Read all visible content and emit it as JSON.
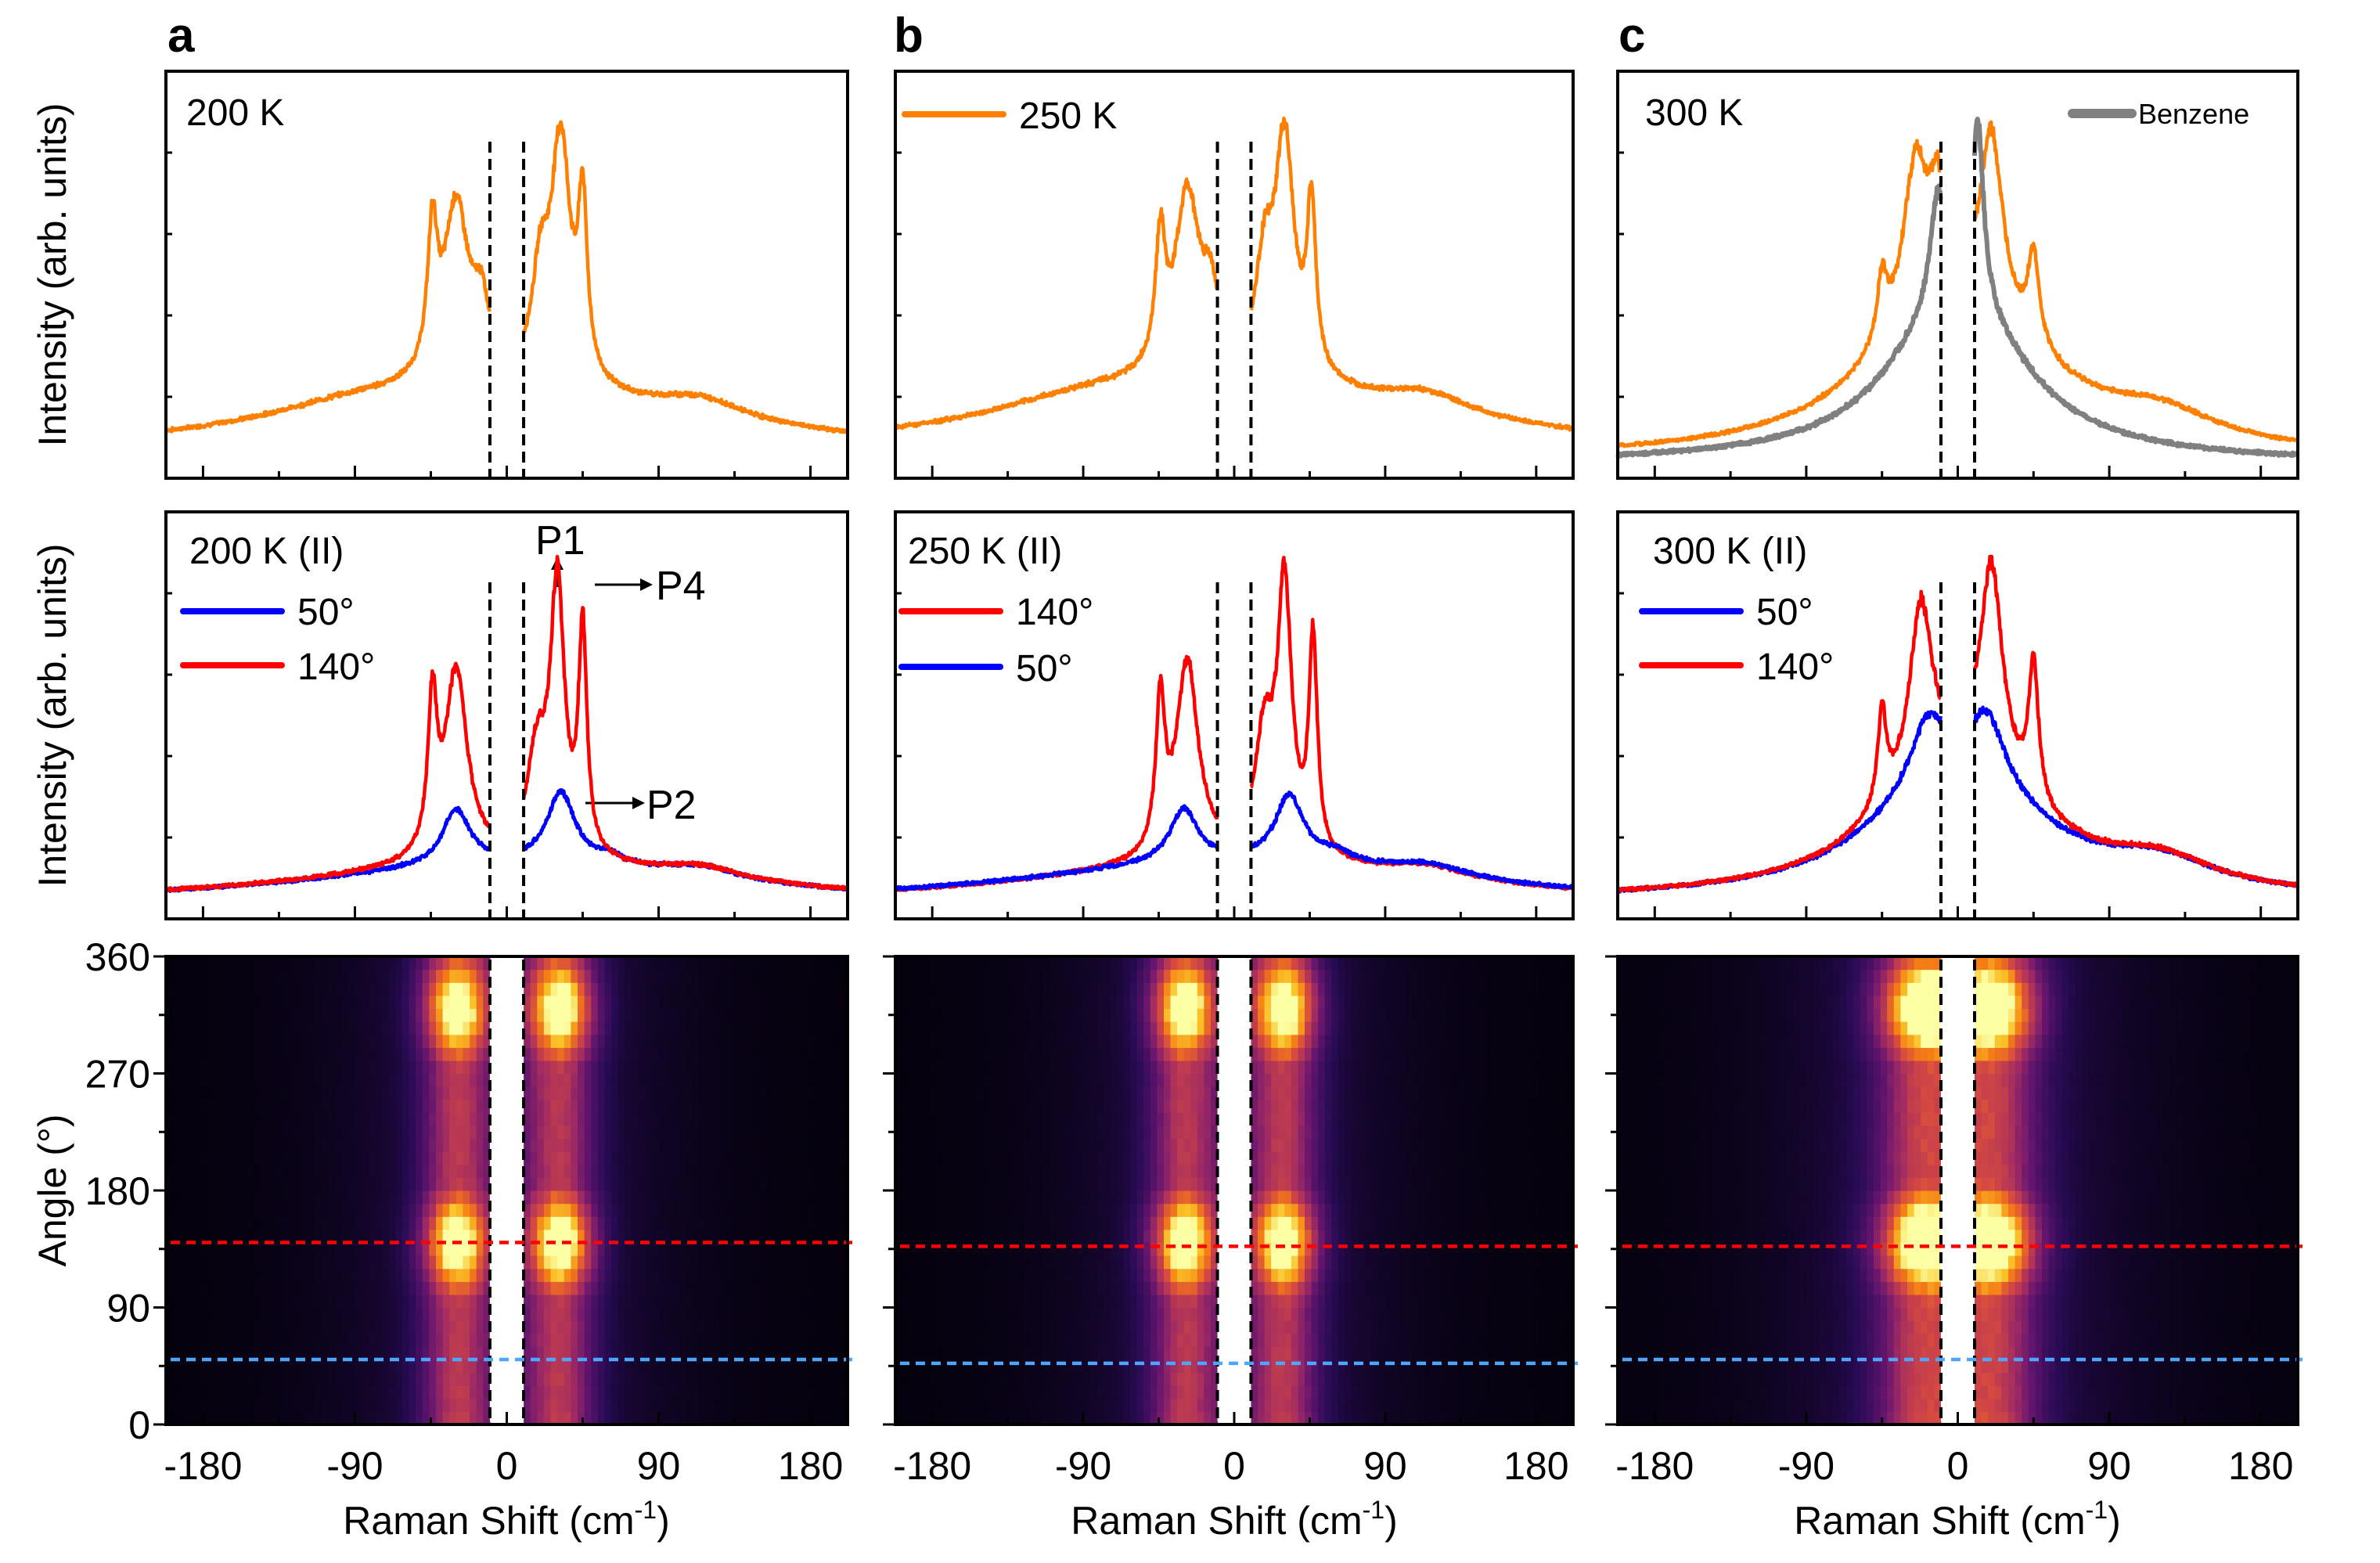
{
  "figure": {
    "panel_letters": [
      "a",
      "b",
      "c"
    ],
    "y_label_spectra": "Intensity (arb. units)",
    "y_label_map": "Angle (°)",
    "x_label": "Raman Shift (cm",
    "x_label_sup": "-1",
    "x_label_end": ")"
  },
  "chart_data": [
    {
      "panel": "a-top",
      "type": "line",
      "title": "200 K",
      "xlabel": "",
      "ylabel": "Intensity (arb. units)",
      "xlim": [
        -202,
        202
      ],
      "x_ticks": [
        -180,
        -90,
        0,
        90,
        180
      ],
      "excluded_region": [
        -10,
        10
      ],
      "series": [
        {
          "name": "200 K",
          "color": "#ff8000",
          "show_legend": false,
          "baseline": 0.05,
          "wings": [
            {
              "center": 0,
              "width": 160,
              "amp": 0.18
            },
            {
              "center": 115,
              "width": 30,
              "amp": 0.06
            },
            {
              "center": -90,
              "width": 60,
              "amp": 0.05
            }
          ],
          "peaks": [
            {
              "center": -44,
              "width": 3.5,
              "amp": 0.42
            },
            {
              "center": -30,
              "width": 9,
              "amp": 0.55
            },
            {
              "center": -15,
              "width": 6,
              "amp": 0.2
            },
            {
              "center": 20,
              "width": 6,
              "amp": 0.3
            },
            {
              "center": 32,
              "width": 7,
              "amp": 0.75
            },
            {
              "center": 45,
              "width": 3.2,
              "amp": 0.52
            }
          ]
        }
      ]
    },
    {
      "panel": "b-top",
      "type": "line",
      "title": "250 K",
      "xlim": [
        -202,
        202
      ],
      "x_ticks": [
        -180,
        -90,
        0,
        90,
        180
      ],
      "excluded_region": [
        -10,
        10
      ],
      "series": [
        {
          "name": "250 K",
          "color": "#ff8000",
          "show_legend": true,
          "baseline": 0.05,
          "wings": [
            {
              "center": 0,
              "width": 160,
              "amp": 0.2
            },
            {
              "center": 115,
              "width": 30,
              "amp": 0.06
            },
            {
              "center": -90,
              "width": 60,
              "amp": 0.05
            }
          ],
          "peaks": [
            {
              "center": -44,
              "width": 3.5,
              "amp": 0.38
            },
            {
              "center": -28,
              "width": 9,
              "amp": 0.55
            },
            {
              "center": -14,
              "width": 6,
              "amp": 0.2
            },
            {
              "center": 18,
              "width": 6,
              "amp": 0.3
            },
            {
              "center": 30,
              "width": 7,
              "amp": 0.72
            },
            {
              "center": 46,
              "width": 3.2,
              "amp": 0.5
            }
          ]
        }
      ]
    },
    {
      "panel": "c-top",
      "type": "line",
      "title": "300 K",
      "xlim": [
        -202,
        202
      ],
      "x_ticks": [
        -180,
        -90,
        0,
        90,
        180
      ],
      "excluded_region": [
        -10,
        10
      ],
      "series": [
        {
          "name": "300 K",
          "color": "#ff8000",
          "show_legend": false,
          "baseline": 0.04,
          "wings": [
            {
              "center": 0,
              "width": 60,
              "amp": 0.45
            },
            {
              "center": 120,
              "width": 40,
              "amp": 0.08
            }
          ],
          "peaks": [
            {
              "center": -45,
              "width": 3.5,
              "amp": 0.18
            },
            {
              "center": -25,
              "width": 9,
              "amp": 0.45
            },
            {
              "center": -12,
              "width": 5,
              "amp": 0.25
            },
            {
              "center": 20,
              "width": 8,
              "amp": 0.5
            },
            {
              "center": 45,
              "width": 4,
              "amp": 0.25
            }
          ]
        },
        {
          "name": "Benzene",
          "color": "#808080",
          "show_legend": true,
          "baseline": 0.03,
          "wings": [
            {
              "center": 0,
              "width": 45,
              "amp": 0.5
            }
          ],
          "peaks": [
            {
              "center": -12,
              "width": 5,
              "amp": 0.3
            },
            {
              "center": 12,
              "width": 4,
              "amp": 0.5
            }
          ]
        }
      ]
    },
    {
      "panel": "a-mid",
      "type": "line",
      "title": "200 K (II)",
      "xlim": [
        -202,
        202
      ],
      "x_ticks": [
        -180,
        -90,
        0,
        90,
        180
      ],
      "excluded_region": [
        -10,
        10
      ],
      "annotations": [
        {
          "text": "P1",
          "arrow": "up",
          "x": 30
        },
        {
          "text": "P4",
          "arrow": "right",
          "x": 45
        },
        {
          "text": "P2",
          "arrow": "right",
          "x": 34
        }
      ],
      "series": [
        {
          "name": "50°",
          "color": "#0000ff",
          "baseline": 0.03,
          "wings": [
            {
              "center": 0,
              "width": 150,
              "amp": 0.12
            },
            {
              "center": 115,
              "width": 30,
              "amp": 0.04
            },
            {
              "center": 60,
              "width": 12,
              "amp": 0.03
            }
          ],
          "peaks": [
            {
              "center": -30,
              "width": 10,
              "amp": 0.17
            },
            {
              "center": 32,
              "width": 10,
              "amp": 0.22
            }
          ]
        },
        {
          "name": "140°",
          "color": "#ff0000",
          "baseline": 0.03,
          "wings": [
            {
              "center": 0,
              "width": 150,
              "amp": 0.12
            },
            {
              "center": 115,
              "width": 30,
              "amp": 0.04
            }
          ],
          "peaks": [
            {
              "center": -44,
              "width": 3.2,
              "amp": 0.45
            },
            {
              "center": -30,
              "width": 8,
              "amp": 0.58
            },
            {
              "center": 18,
              "width": 7,
              "amp": 0.3
            },
            {
              "center": 30,
              "width": 5,
              "amp": 0.82
            },
            {
              "center": 45,
              "width": 3,
              "amp": 0.68
            }
          ]
        }
      ]
    },
    {
      "panel": "b-mid",
      "type": "line",
      "title": "250 K (II)",
      "xlim": [
        -202,
        202
      ],
      "x_ticks": [
        -180,
        -90,
        0,
        90,
        180
      ],
      "excluded_region": [
        -10,
        10
      ],
      "series": [
        {
          "name": "140°",
          "color": "#ff0000",
          "baseline": 0.03,
          "wings": [
            {
              "center": 0,
              "width": 150,
              "amp": 0.12
            },
            {
              "center": 115,
              "width": 30,
              "amp": 0.04
            }
          ],
          "peaks": [
            {
              "center": -44,
              "width": 3.2,
              "amp": 0.45
            },
            {
              "center": -28,
              "width": 8,
              "amp": 0.6
            },
            {
              "center": 18,
              "width": 7,
              "amp": 0.35
            },
            {
              "center": 30,
              "width": 5,
              "amp": 0.8
            },
            {
              "center": 47,
              "width": 3,
              "amp": 0.65
            }
          ]
        },
        {
          "name": "50°",
          "color": "#0000ff",
          "baseline": 0.03,
          "wings": [
            {
              "center": 0,
              "width": 150,
              "amp": 0.13
            },
            {
              "center": 115,
              "width": 30,
              "amp": 0.04
            },
            {
              "center": 60,
              "width": 12,
              "amp": 0.03
            }
          ],
          "peaks": [
            {
              "center": -30,
              "width": 10,
              "amp": 0.16
            },
            {
              "center": 33,
              "width": 10,
              "amp": 0.2
            }
          ]
        }
      ]
    },
    {
      "panel": "c-mid",
      "type": "line",
      "title": "300 K (II)",
      "xlim": [
        -202,
        202
      ],
      "x_ticks": [
        -180,
        -90,
        0,
        90,
        180
      ],
      "excluded_region": [
        -10,
        10
      ],
      "series": [
        {
          "name": "50°",
          "color": "#0000ff",
          "baseline": 0.03,
          "wings": [
            {
              "center": 0,
              "width": 55,
              "amp": 0.3
            },
            {
              "center": 120,
              "width": 40,
              "amp": 0.06
            }
          ],
          "peaks": [
            {
              "center": -18,
              "width": 12,
              "amp": 0.12
            },
            {
              "center": 18,
              "width": 12,
              "amp": 0.12
            }
          ]
        },
        {
          "name": "140°",
          "color": "#ff0000",
          "baseline": 0.03,
          "wings": [
            {
              "center": 0,
              "width": 55,
              "amp": 0.3
            },
            {
              "center": 120,
              "width": 40,
              "amp": 0.06
            }
          ],
          "peaks": [
            {
              "center": -45,
              "width": 3.2,
              "amp": 0.2
            },
            {
              "center": -22,
              "width": 8,
              "amp": 0.38
            },
            {
              "center": 20,
              "width": 8,
              "amp": 0.45
            },
            {
              "center": 45,
              "width": 3.5,
              "amp": 0.3
            }
          ]
        }
      ]
    },
    {
      "panel": "a-map",
      "type": "heatmap",
      "xlim": [
        -202,
        202
      ],
      "ylim": [
        0,
        360
      ],
      "x_ticks": [
        -180,
        -90,
        0,
        90,
        180
      ],
      "y_ticks": [
        0,
        90,
        180,
        270,
        360
      ],
      "excluded_region": [
        -10,
        10
      ],
      "hlines": [
        {
          "angle": 140,
          "color": "#ff0000"
        },
        {
          "angle": 50,
          "color": "#4da6ff"
        }
      ],
      "bands": [
        {
          "center": -30,
          "width": 14
        },
        {
          "center": 32,
          "width": 14
        }
      ],
      "max_angles": [
        140,
        320
      ],
      "bg_width": 120
    },
    {
      "panel": "b-map",
      "type": "heatmap",
      "xlim": [
        -202,
        202
      ],
      "ylim": [
        0,
        360
      ],
      "x_ticks": [
        -180,
        -90,
        0,
        90,
        180
      ],
      "y_ticks": [
        0,
        90,
        180,
        270,
        360
      ],
      "excluded_region": [
        -10,
        10
      ],
      "hlines": [
        {
          "angle": 137,
          "color": "#ff0000"
        },
        {
          "angle": 47,
          "color": "#4da6ff"
        }
      ],
      "bands": [
        {
          "center": -30,
          "width": 14
        },
        {
          "center": 30,
          "width": 14
        }
      ],
      "max_angles": [
        140,
        320
      ],
      "bg_width": 120
    },
    {
      "panel": "c-map",
      "type": "heatmap",
      "xlim": [
        -202,
        202
      ],
      "ylim": [
        0,
        360
      ],
      "x_ticks": [
        -180,
        -90,
        0,
        90,
        180
      ],
      "y_ticks": [
        0,
        90,
        180,
        270,
        360
      ],
      "excluded_region": [
        -10,
        10
      ],
      "hlines": [
        {
          "angle": 137,
          "color": "#ff0000"
        },
        {
          "angle": 50,
          "color": "#4da6ff"
        }
      ],
      "bands": [
        {
          "center": -22,
          "width": 18
        },
        {
          "center": 22,
          "width": 18
        }
      ],
      "max_angles": [
        140,
        320
      ],
      "bg_width": 140
    }
  ]
}
